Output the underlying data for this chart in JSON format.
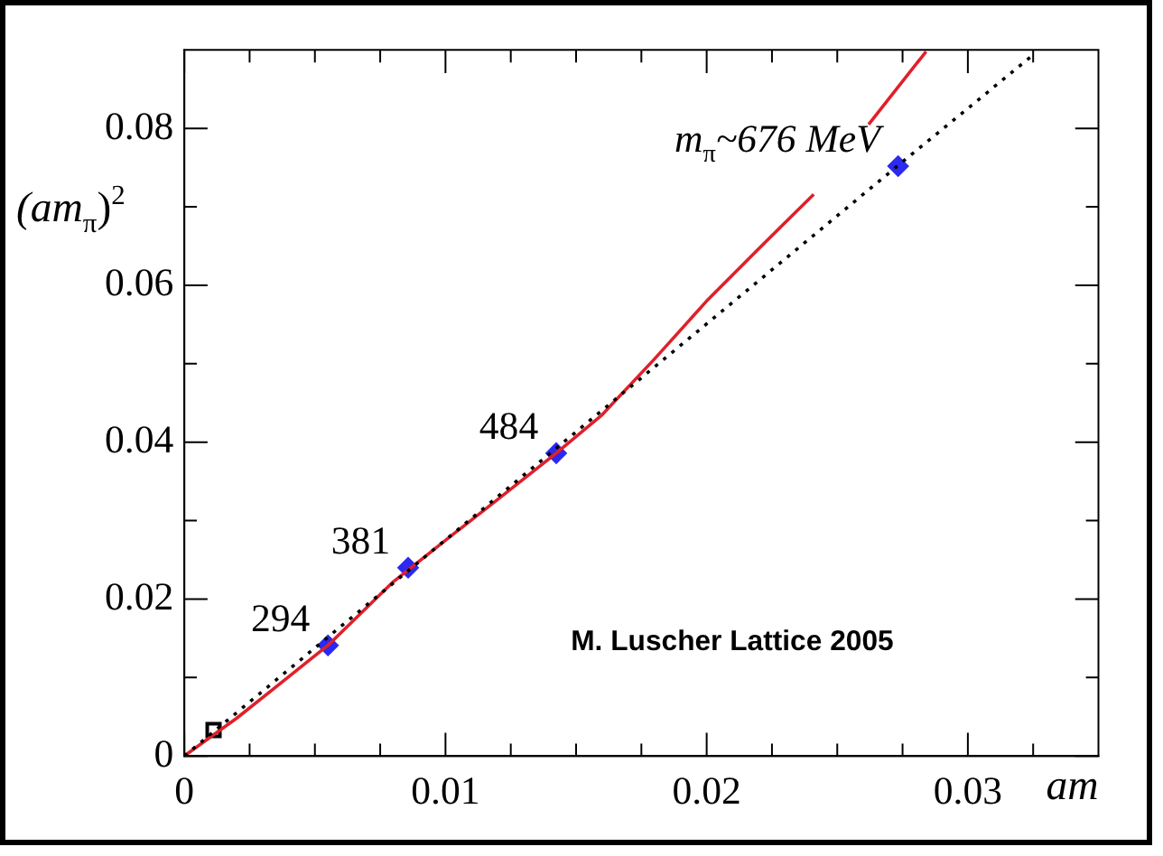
{
  "chart_data": {
    "type": "line",
    "xlabel": "am",
    "ylabel": "(am$_{π}$)$^{2}$",
    "xlim": [
      0,
      0.035
    ],
    "ylim": [
      0,
      0.09
    ],
    "xticks": [
      0,
      {
        "value": 0.0025,
        "label": null
      },
      {
        "value": 0.005,
        "label": null
      },
      {
        "value": 0.0075,
        "label": null
      },
      0.01,
      {
        "value": 0.0125,
        "label": null
      },
      {
        "value": 0.015,
        "label": null
      },
      {
        "value": 0.0175,
        "label": null
      },
      0.02,
      {
        "value": 0.0225,
        "label": null
      },
      {
        "value": 0.025,
        "label": null
      },
      {
        "value": 0.0275,
        "label": null
      },
      0.03,
      {
        "value": 0.0325,
        "label": null
      }
    ],
    "yticks": [
      0,
      {
        "value": 0.01,
        "label": null
      },
      0.02,
      {
        "value": 0.03,
        "label": null
      },
      0.04,
      {
        "value": 0.05,
        "label": null
      },
      0.06,
      {
        "value": 0.07,
        "label": null
      },
      0.08
    ],
    "grid": false,
    "legend": false,
    "series": [
      {
        "color": "#000000",
        "marker": "none",
        "line_style": "dotted",
        "x": [
          0,
          0.0273,
          0.0324
        ],
        "values": [
          0,
          0.0752,
          0.0891
        ]
      },
      {
        "color": "#e0202a",
        "marker": "none",
        "line_style": "solid",
        "x": [
          0,
          0.002,
          0.004,
          0.0055,
          0.008,
          0.01,
          0.012,
          0.01424,
          0.016,
          0.018,
          0.02,
          0.022,
          0.0241,
          0.025,
          0.0262,
          0.0284
        ],
        "values": [
          0,
          0.0048,
          0.0101,
          0.0141,
          0.0222,
          0.0275,
          0.0327,
          0.0386,
          0.0435,
          0.0506,
          0.058,
          0.0647,
          0.0716,
          null,
          0.0805,
          0.0898
        ]
      },
      {
        "type": "scatter",
        "color": "#2a2af0",
        "marker": "diamond",
        "x": [
          0.0055,
          0.00857,
          0.01424,
          0.02733
        ],
        "values": [
          0.0141,
          0.024,
          0.0386,
          0.0752
        ]
      },
      {
        "type": "scatter",
        "color": "#000000",
        "marker": "square",
        "x": [
          0.00112
        ],
        "values": [
          0.0033
        ]
      }
    ],
    "annotations": [
      {
        "text": "294",
        "x": 0.0055,
        "y": 0.0141
      },
      {
        "text": "381",
        "x": 0.00857,
        "y": 0.024
      },
      {
        "text": "484",
        "x": 0.01424,
        "y": 0.0386
      },
      {
        "text": "m$_{π}$~676 MeV",
        "x": 0.02733,
        "y": 0.0752
      },
      "M. Luscher Lattice 2005"
    ]
  }
}
